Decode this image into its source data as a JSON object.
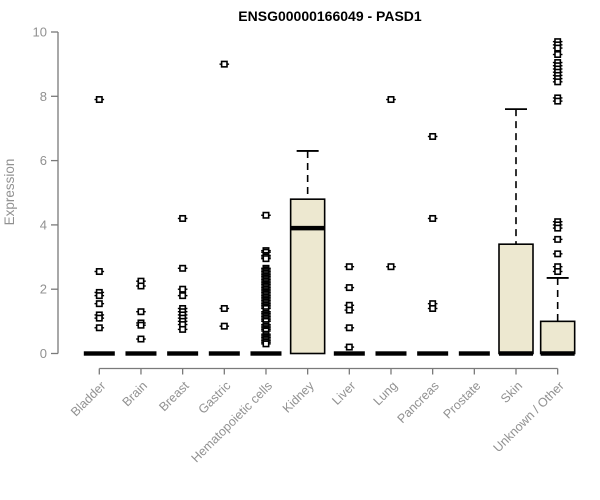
{
  "chart_data": {
    "type": "boxplot",
    "title": "ENSG00000166049 - PASD1",
    "xlabel": "",
    "ylabel": "Expression",
    "ylim": [
      0,
      10
    ],
    "yticks": [
      0,
      2,
      4,
      6,
      8,
      10
    ],
    "grid": false,
    "legend": "none",
    "box_fill_color": "#ede8d0",
    "box_stroke_color": "#000000",
    "axis_color": "#7a7a7a",
    "label_color": "#919191",
    "title_color": "#000000",
    "categories": [
      "Bladder",
      "Brain",
      "Breast",
      "Gastric",
      "Hematopoietic cells",
      "Kidney",
      "Liver",
      "Lung",
      "Pancreas",
      "Prostate",
      "Skin",
      "Unknown / Other"
    ],
    "series": [
      {
        "name": "Bladder",
        "q1": 0,
        "median": 0,
        "q3": 0,
        "whisker_low": 0,
        "whisker_high": 0,
        "outliers": [
          7.9,
          2.55,
          1.9,
          1.8,
          1.55,
          1.2,
          1.1,
          0.8
        ]
      },
      {
        "name": "Brain",
        "q1": 0,
        "median": 0,
        "q3": 0,
        "whisker_low": 0,
        "whisker_high": 0,
        "outliers": [
          2.25,
          2.1,
          1.3,
          0.95,
          0.88,
          0.45
        ]
      },
      {
        "name": "Breast",
        "q1": 0,
        "median": 0,
        "q3": 0,
        "whisker_low": 0,
        "whisker_high": 0,
        "outliers": [
          4.2,
          2.65,
          2.0,
          1.8,
          1.4,
          1.3,
          1.2,
          1.1,
          1.0,
          0.9,
          0.75
        ]
      },
      {
        "name": "Gastric",
        "q1": 0,
        "median": 0,
        "q3": 0,
        "whisker_low": 0,
        "whisker_high": 0,
        "outliers": [
          9.0,
          1.4,
          0.85
        ]
      },
      {
        "name": "Hematopoietic cells",
        "q1": 0,
        "median": 0,
        "q3": 0,
        "whisker_low": 0,
        "whisker_high": 0,
        "outliers": [
          4.3,
          3.2,
          3.15,
          3.05,
          3.0,
          2.95,
          2.65,
          2.6,
          2.55,
          2.5,
          2.45,
          2.4,
          2.35,
          2.3,
          2.25,
          2.2,
          2.15,
          2.1,
          2.05,
          2.0,
          1.95,
          1.9,
          1.85,
          1.8,
          1.75,
          1.7,
          1.65,
          1.6,
          1.55,
          1.5,
          1.45,
          1.4,
          1.3,
          1.25,
          1.2,
          1.15,
          1.1,
          1.05,
          1.0,
          0.9,
          0.85,
          0.8,
          0.75,
          0.7,
          0.6,
          0.55,
          0.5,
          0.45,
          0.4,
          0.35,
          0.3
        ]
      },
      {
        "name": "Kidney",
        "q1": 0,
        "median": 3.9,
        "q3": 4.8,
        "whisker_low": 0,
        "whisker_high": 6.3,
        "outliers": []
      },
      {
        "name": "Liver",
        "q1": 0,
        "median": 0,
        "q3": 0,
        "whisker_low": 0,
        "whisker_high": 0,
        "outliers": [
          2.7,
          2.05,
          1.5,
          1.35,
          0.8,
          0.2
        ]
      },
      {
        "name": "Lung",
        "q1": 0,
        "median": 0,
        "q3": 0,
        "whisker_low": 0,
        "whisker_high": 0,
        "outliers": [
          7.9,
          2.7
        ]
      },
      {
        "name": "Pancreas",
        "q1": 0,
        "median": 0,
        "q3": 0,
        "whisker_low": 0,
        "whisker_high": 0,
        "outliers": [
          6.75,
          4.2,
          1.55,
          1.4
        ]
      },
      {
        "name": "Prostate",
        "q1": 0,
        "median": 0,
        "q3": 0,
        "whisker_low": 0,
        "whisker_high": 0,
        "outliers": []
      },
      {
        "name": "Skin",
        "q1": 0,
        "median": 0,
        "q3": 3.4,
        "whisker_low": 0,
        "whisker_high": 7.6,
        "outliers": []
      },
      {
        "name": "Unknown / Other",
        "q1": 0,
        "median": 0,
        "q3": 1.0,
        "whisker_low": 0,
        "whisker_high": 2.35,
        "outliers": [
          9.7,
          9.6,
          9.5,
          9.3,
          9.05,
          8.95,
          8.85,
          8.75,
          8.65,
          8.55,
          8.45,
          7.95,
          7.85,
          4.1,
          4.0,
          3.9,
          3.55,
          3.1,
          2.7,
          2.55
        ]
      }
    ]
  }
}
